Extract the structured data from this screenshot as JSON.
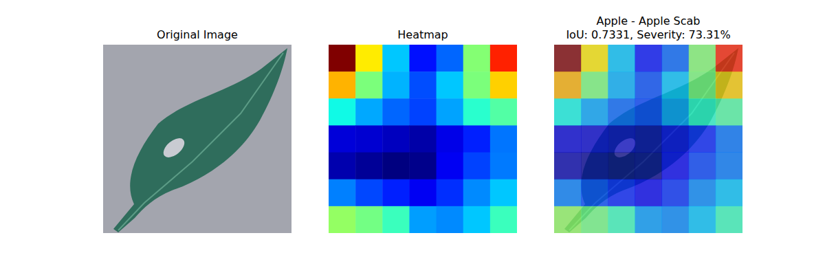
{
  "chart_data": [
    {
      "type": "image",
      "title": "Original Image",
      "tick_labels": false
    },
    {
      "type": "heatmap",
      "title": "Heatmap",
      "tick_labels": false,
      "cells": [
        [
          1.0,
          0.66,
          0.32,
          0.14,
          0.225,
          0.51,
          0.875
        ],
        [
          0.72,
          0.5,
          0.3,
          0.2,
          0.32,
          0.5,
          0.69
        ],
        [
          0.37,
          0.29,
          0.225,
          0.19,
          0.285,
          0.4,
          0.45
        ],
        [
          0.077,
          0.07,
          0.055,
          0.035,
          0.09,
          0.155,
          0.24
        ],
        [
          0.04,
          0.02,
          0.0,
          0.01,
          0.1,
          0.19,
          0.245
        ],
        [
          0.25,
          0.195,
          0.155,
          0.1,
          0.17,
          0.26,
          0.32
        ],
        [
          0.53,
          0.49,
          0.42,
          0.28,
          0.26,
          0.32,
          0.42
        ]
      ]
    },
    {
      "type": "heatmap_overlay",
      "title": "Apple - Apple Scab",
      "subtitle": "IoU: 0.7331, Severity: 73.31%",
      "tick_labels": false,
      "cells": [
        [
          1.0,
          0.66,
          0.32,
          0.14,
          0.225,
          0.51,
          0.875
        ],
        [
          0.72,
          0.5,
          0.3,
          0.2,
          0.32,
          0.5,
          0.69
        ],
        [
          0.37,
          0.29,
          0.225,
          0.19,
          0.285,
          0.4,
          0.45
        ],
        [
          0.077,
          0.07,
          0.055,
          0.035,
          0.09,
          0.155,
          0.24
        ],
        [
          0.04,
          0.02,
          0.0,
          0.01,
          0.1,
          0.19,
          0.245
        ],
        [
          0.25,
          0.195,
          0.155,
          0.1,
          0.17,
          0.26,
          0.32
        ],
        [
          0.53,
          0.49,
          0.42,
          0.28,
          0.26,
          0.32,
          0.42
        ]
      ]
    }
  ]
}
